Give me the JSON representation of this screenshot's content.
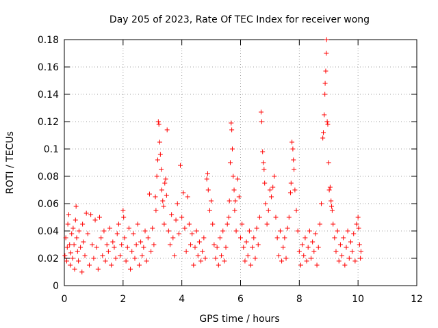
{
  "chart_data": {
    "type": "scatter",
    "title": "Day 205 of 2023, Rate Of TEC Index for receiver wong",
    "xlabel": "GPS time / hours",
    "ylabel": "ROTI / TECUs",
    "xlim": [
      0,
      12
    ],
    "ylim": [
      0,
      0.18
    ],
    "xticks": [
      0,
      2,
      4,
      6,
      8,
      10,
      12
    ],
    "yticks": [
      0,
      0.02,
      0.04,
      0.06,
      0.08,
      0.1,
      0.12,
      0.14,
      0.16,
      0.18
    ],
    "xtick_labels": [
      "0",
      "2",
      "4",
      "6",
      "8",
      "10",
      "12"
    ],
    "ytick_labels": [
      "0",
      "0.02",
      "0.04",
      "0.06",
      "0.08",
      "0.1",
      "0.12",
      "0.14",
      "0.16",
      "0.18"
    ],
    "grid": true,
    "marker": "+",
    "series": [
      {
        "name": "ROTI",
        "color": "#ff0000",
        "points": [
          [
            0.02,
            0.022
          ],
          [
            0.05,
            0.035
          ],
          [
            0.08,
            0.018
          ],
          [
            0.1,
            0.028
          ],
          [
            0.12,
            0.045
          ],
          [
            0.15,
            0.052
          ],
          [
            0.18,
            0.03
          ],
          [
            0.2,
            0.015
          ],
          [
            0.22,
            0.024
          ],
          [
            0.25,
            0.038
          ],
          [
            0.28,
            0.02
          ],
          [
            0.3,
            0.042
          ],
          [
            0.33,
            0.03
          ],
          [
            0.35,
            0.012
          ],
          [
            0.38,
            0.048
          ],
          [
            0.4,
            0.058
          ],
          [
            0.42,
            0.035
          ],
          [
            0.45,
            0.025
          ],
          [
            0.48,
            0.018
          ],
          [
            0.5,
            0.04
          ],
          [
            0.55,
            0.028
          ],
          [
            0.6,
            0.01
          ],
          [
            0.62,
            0.045
          ],
          [
            0.65,
            0.032
          ],
          [
            0.7,
            0.022
          ],
          [
            0.75,
            0.053
          ],
          [
            0.8,
            0.038
          ],
          [
            0.85,
            0.015
          ],
          [
            0.9,
            0.052
          ],
          [
            0.95,
            0.03
          ],
          [
            1.0,
            0.02
          ],
          [
            1.05,
            0.048
          ],
          [
            1.1,
            0.028
          ],
          [
            1.15,
            0.012
          ],
          [
            1.2,
            0.05
          ],
          [
            1.25,
            0.035
          ],
          [
            1.3,
            0.022
          ],
          [
            1.35,
            0.04
          ],
          [
            1.4,
            0.018
          ],
          [
            1.45,
            0.03
          ],
          [
            1.5,
            0.025
          ],
          [
            1.55,
            0.042
          ],
          [
            1.6,
            0.015
          ],
          [
            1.65,
            0.032
          ],
          [
            1.7,
            0.028
          ],
          [
            1.75,
            0.02
          ],
          [
            1.8,
            0.038
          ],
          [
            1.85,
            0.045
          ],
          [
            1.9,
            0.022
          ],
          [
            1.95,
            0.03
          ],
          [
            2.0,
            0.055
          ],
          [
            2.02,
            0.05
          ],
          [
            2.05,
            0.035
          ],
          [
            2.1,
            0.018
          ],
          [
            2.15,
            0.028
          ],
          [
            2.2,
            0.042
          ],
          [
            2.25,
            0.012
          ],
          [
            2.3,
            0.025
          ],
          [
            2.35,
            0.038
          ],
          [
            2.4,
            0.02
          ],
          [
            2.45,
            0.03
          ],
          [
            2.5,
            0.045
          ],
          [
            2.55,
            0.015
          ],
          [
            2.6,
            0.032
          ],
          [
            2.65,
            0.022
          ],
          [
            2.7,
            0.028
          ],
          [
            2.75,
            0.04
          ],
          [
            2.8,
            0.018
          ],
          [
            2.85,
            0.035
          ],
          [
            2.9,
            0.067
          ],
          [
            2.95,
            0.025
          ],
          [
            3.0,
            0.042
          ],
          [
            3.05,
            0.03
          ],
          [
            3.1,
            0.065
          ],
          [
            3.12,
            0.055
          ],
          [
            3.15,
            0.08
          ],
          [
            3.18,
            0.092
          ],
          [
            3.2,
            0.12
          ],
          [
            3.22,
            0.118
          ],
          [
            3.25,
            0.105
          ],
          [
            3.27,
            0.096
          ],
          [
            3.3,
            0.085
          ],
          [
            3.32,
            0.07
          ],
          [
            3.35,
            0.062
          ],
          [
            3.38,
            0.058
          ],
          [
            3.4,
            0.045
          ],
          [
            3.42,
            0.075
          ],
          [
            3.45,
            0.078
          ],
          [
            3.48,
            0.066
          ],
          [
            3.5,
            0.114
          ],
          [
            3.55,
            0.04
          ],
          [
            3.6,
            0.03
          ],
          [
            3.65,
            0.052
          ],
          [
            3.7,
            0.035
          ],
          [
            3.75,
            0.022
          ],
          [
            3.8,
            0.048
          ],
          [
            3.85,
            0.06
          ],
          [
            3.9,
            0.038
          ],
          [
            3.95,
            0.088
          ],
          [
            4.0,
            0.05
          ],
          [
            4.05,
            0.068
          ],
          [
            4.1,
            0.042
          ],
          [
            4.15,
            0.025
          ],
          [
            4.2,
            0.065
          ],
          [
            4.25,
            0.045
          ],
          [
            4.3,
            0.03
          ],
          [
            4.35,
            0.038
          ],
          [
            4.4,
            0.015
          ],
          [
            4.45,
            0.028
          ],
          [
            4.5,
            0.04
          ],
          [
            4.55,
            0.022
          ],
          [
            4.6,
            0.032
          ],
          [
            4.65,
            0.018
          ],
          [
            4.7,
            0.025
          ],
          [
            4.75,
            0.035
          ],
          [
            4.8,
            0.02
          ],
          [
            4.85,
            0.078
          ],
          [
            4.88,
            0.082
          ],
          [
            4.9,
            0.07
          ],
          [
            4.95,
            0.055
          ],
          [
            5.0,
            0.062
          ],
          [
            5.05,
            0.045
          ],
          [
            5.1,
            0.03
          ],
          [
            5.15,
            0.02
          ],
          [
            5.2,
            0.028
          ],
          [
            5.25,
            0.015
          ],
          [
            5.3,
            0.035
          ],
          [
            5.35,
            0.022
          ],
          [
            5.4,
            0.04
          ],
          [
            5.45,
            0.018
          ],
          [
            5.5,
            0.028
          ],
          [
            5.55,
            0.045
          ],
          [
            5.6,
            0.05
          ],
          [
            5.62,
            0.062
          ],
          [
            5.65,
            0.09
          ],
          [
            5.68,
            0.119
          ],
          [
            5.7,
            0.114
          ],
          [
            5.72,
            0.1
          ],
          [
            5.75,
            0.08
          ],
          [
            5.78,
            0.07
          ],
          [
            5.8,
            0.055
          ],
          [
            5.82,
            0.062
          ],
          [
            5.85,
            0.04
          ],
          [
            5.9,
            0.078
          ],
          [
            5.95,
            0.065
          ],
          [
            6.0,
            0.035
          ],
          [
            6.05,
            0.045
          ],
          [
            6.1,
            0.028
          ],
          [
            6.15,
            0.018
          ],
          [
            6.2,
            0.032
          ],
          [
            6.25,
            0.022
          ],
          [
            6.3,
            0.04
          ],
          [
            6.35,
            0.015
          ],
          [
            6.4,
            0.028
          ],
          [
            6.45,
            0.035
          ],
          [
            6.5,
            0.02
          ],
          [
            6.55,
            0.042
          ],
          [
            6.6,
            0.03
          ],
          [
            6.65,
            0.05
          ],
          [
            6.7,
            0.127
          ],
          [
            6.72,
            0.12
          ],
          [
            6.75,
            0.098
          ],
          [
            6.78,
            0.09
          ],
          [
            6.8,
            0.085
          ],
          [
            6.82,
            0.075
          ],
          [
            6.85,
            0.06
          ],
          [
            6.9,
            0.045
          ],
          [
            6.95,
            0.055
          ],
          [
            7.0,
            0.07
          ],
          [
            7.05,
            0.065
          ],
          [
            7.1,
            0.072
          ],
          [
            7.15,
            0.08
          ],
          [
            7.2,
            0.05
          ],
          [
            7.25,
            0.035
          ],
          [
            7.3,
            0.022
          ],
          [
            7.35,
            0.04
          ],
          [
            7.4,
            0.018
          ],
          [
            7.45,
            0.028
          ],
          [
            7.5,
            0.035
          ],
          [
            7.55,
            0.02
          ],
          [
            7.6,
            0.042
          ],
          [
            7.65,
            0.05
          ],
          [
            7.7,
            0.068
          ],
          [
            7.72,
            0.075
          ],
          [
            7.75,
            0.105
          ],
          [
            7.78,
            0.1
          ],
          [
            7.8,
            0.092
          ],
          [
            7.82,
            0.085
          ],
          [
            7.85,
            0.07
          ],
          [
            7.9,
            0.055
          ],
          [
            7.95,
            0.04
          ],
          [
            8.0,
            0.025
          ],
          [
            8.05,
            0.015
          ],
          [
            8.1,
            0.03
          ],
          [
            8.15,
            0.022
          ],
          [
            8.2,
            0.035
          ],
          [
            8.25,
            0.018
          ],
          [
            8.3,
            0.028
          ],
          [
            8.35,
            0.04
          ],
          [
            8.4,
            0.02
          ],
          [
            8.45,
            0.032
          ],
          [
            8.5,
            0.025
          ],
          [
            8.55,
            0.038
          ],
          [
            8.6,
            0.015
          ],
          [
            8.65,
            0.028
          ],
          [
            8.7,
            0.045
          ],
          [
            8.75,
            0.06
          ],
          [
            8.8,
            0.108
          ],
          [
            8.82,
            0.112
          ],
          [
            8.85,
            0.125
          ],
          [
            8.87,
            0.14
          ],
          [
            8.88,
            0.148
          ],
          [
            8.9,
            0.157
          ],
          [
            8.92,
            0.17
          ],
          [
            8.93,
            0.18
          ],
          [
            8.95,
            0.12
          ],
          [
            8.97,
            0.118
          ],
          [
            9.0,
            0.09
          ],
          [
            9.02,
            0.07
          ],
          [
            9.05,
            0.072
          ],
          [
            9.08,
            0.062
          ],
          [
            9.1,
            0.058
          ],
          [
            9.12,
            0.055
          ],
          [
            9.15,
            0.045
          ],
          [
            9.2,
            0.035
          ],
          [
            9.25,
            0.025
          ],
          [
            9.3,
            0.04
          ],
          [
            9.35,
            0.018
          ],
          [
            9.4,
            0.03
          ],
          [
            9.45,
            0.022
          ],
          [
            9.5,
            0.035
          ],
          [
            9.55,
            0.015
          ],
          [
            9.6,
            0.028
          ],
          [
            9.65,
            0.04
          ],
          [
            9.7,
            0.02
          ],
          [
            9.75,
            0.032
          ],
          [
            9.8,
            0.025
          ],
          [
            9.85,
            0.038
          ],
          [
            9.9,
            0.018
          ],
          [
            9.95,
            0.045
          ],
          [
            10.0,
            0.05
          ],
          [
            10.02,
            0.042
          ],
          [
            10.05,
            0.03
          ],
          [
            10.08,
            0.02
          ],
          [
            10.1,
            0.025
          ]
        ]
      }
    ]
  }
}
